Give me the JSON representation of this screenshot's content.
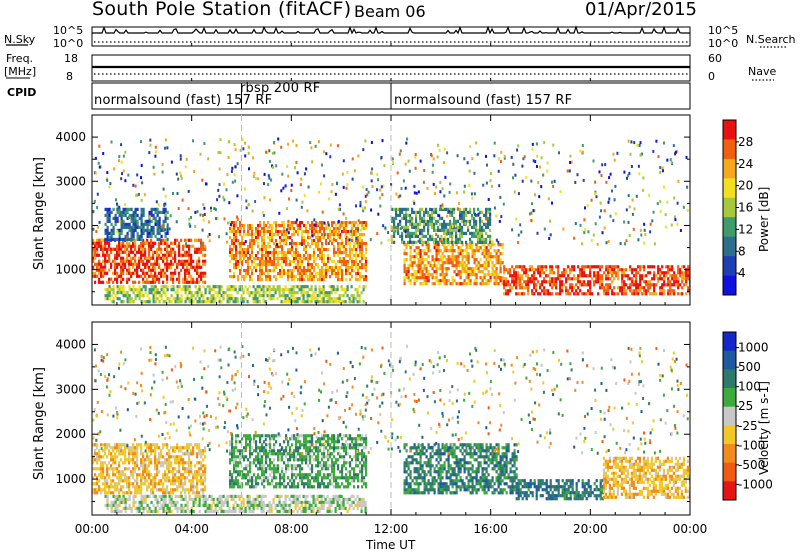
{
  "header": {
    "station_title": "South Pole Station (fitACF)",
    "beam_label": "Beam 06",
    "date": "01/Apr/2015"
  },
  "noise_panel": {
    "left_label": "N.Sky",
    "right_label": "N.Search",
    "ticks_left": [
      "10^5",
      "10^0"
    ],
    "ticks_right": [
      "10^5",
      "10^0"
    ]
  },
  "freq_panel": {
    "left_label_line1": "Freq.",
    "left_label_line2": "[MHz]",
    "right_label": "Nave",
    "ticks_left": [
      "18",
      "8"
    ],
    "ticks_right": [
      "60",
      "0"
    ]
  },
  "cpid": {
    "label": "CPID",
    "segments": [
      {
        "name": "normalsound (fast) 157 RF",
        "start_hr": 0,
        "end_hr": 6
      },
      {
        "name": "rbsp 200 RF",
        "start_hr": 6,
        "end_hr": 12
      },
      {
        "name": "normalsound (fast) 157 RF",
        "start_hr": 12,
        "end_hr": 24
      }
    ]
  },
  "colors": {
    "power_scale": [
      "#1010e0",
      "#1e3fb4",
      "#2b6f8c",
      "#3f9a6c",
      "#a8c83c",
      "#f0e020",
      "#f5a81e",
      "#f06010",
      "#e81010"
    ],
    "velocity_scale": [
      "#1428c8",
      "#1e5aa0",
      "#2d7a6c",
      "#3caa3c",
      "#c8c8c8",
      "#f0c828",
      "#f08c1e",
      "#f05a14",
      "#e61414"
    ]
  },
  "chart_data": [
    {
      "type": "heatmap",
      "title": "Power",
      "xlabel": "",
      "ylabel": "Slant Range [km]",
      "x_unit": "hours UT",
      "xlim": [
        0,
        24
      ],
      "ylim": [
        200,
        4500
      ],
      "x_ticks": [
        "00:00",
        "04:00",
        "08:00",
        "12:00",
        "16:00",
        "20:00",
        "00:00"
      ],
      "y_ticks": [
        "1000",
        "2000",
        "3000",
        "4000"
      ],
      "colorbar": {
        "label": "Power [dB]",
        "range": [
          0,
          32
        ],
        "ticks": [
          "4",
          "8",
          "12",
          "16",
          "20",
          "24",
          "28"
        ]
      },
      "regions": [
        {
          "x": [
            0,
            4.5
          ],
          "range_km": [
            700,
            1700
          ],
          "value_db": 28
        },
        {
          "x": [
            0.5,
            3
          ],
          "range_km": [
            1700,
            2400
          ],
          "value_db": 8
        },
        {
          "x": [
            5.5,
            11
          ],
          "range_km": [
            800,
            2100
          ],
          "value_db": 24
        },
        {
          "x": [
            0.5,
            11
          ],
          "range_km": [
            300,
            650
          ],
          "value_db": 16
        },
        {
          "x": [
            12.5,
            16.5
          ],
          "range_km": [
            700,
            1600
          ],
          "value_db": 24
        },
        {
          "x": [
            16.5,
            24
          ],
          "range_km": [
            450,
            1100
          ],
          "value_db": 28
        },
        {
          "x": [
            12,
            16
          ],
          "range_km": [
            1600,
            2400
          ],
          "value_db": 12
        }
      ]
    },
    {
      "type": "heatmap",
      "title": "Velocity",
      "xlabel": "Time UT",
      "ylabel": "Slant Range [km]",
      "x_unit": "hours UT",
      "xlim": [
        0,
        24
      ],
      "ylim": [
        200,
        4500
      ],
      "x_ticks": [
        "00:00",
        "04:00",
        "08:00",
        "12:00",
        "16:00",
        "20:00",
        "00:00"
      ],
      "y_ticks": [
        "1000",
        "2000",
        "3000",
        "4000"
      ],
      "colorbar": {
        "label": "Velocity [m s-1]",
        "range": [
          -1200,
          1200
        ],
        "ticks": [
          "1000",
          "500",
          "100",
          "25",
          "-25",
          "-100",
          "-500",
          "-1000"
        ]
      },
      "regions": [
        {
          "x": [
            0,
            4.5
          ],
          "range_km": [
            700,
            1800
          ],
          "value_ms": -300
        },
        {
          "x": [
            5.5,
            11
          ],
          "range_km": [
            800,
            2000
          ],
          "value_ms": 300
        },
        {
          "x": [
            12.5,
            17
          ],
          "range_km": [
            700,
            1800
          ],
          "value_ms": 500
        },
        {
          "x": [
            17,
            20.5
          ],
          "range_km": [
            550,
            1000
          ],
          "value_ms": 600
        },
        {
          "x": [
            20.5,
            24
          ],
          "range_km": [
            600,
            1500
          ],
          "value_ms": -300
        },
        {
          "x": [
            0.5,
            11
          ],
          "range_km": [
            300,
            650
          ],
          "value_ms": 50
        }
      ]
    }
  ]
}
